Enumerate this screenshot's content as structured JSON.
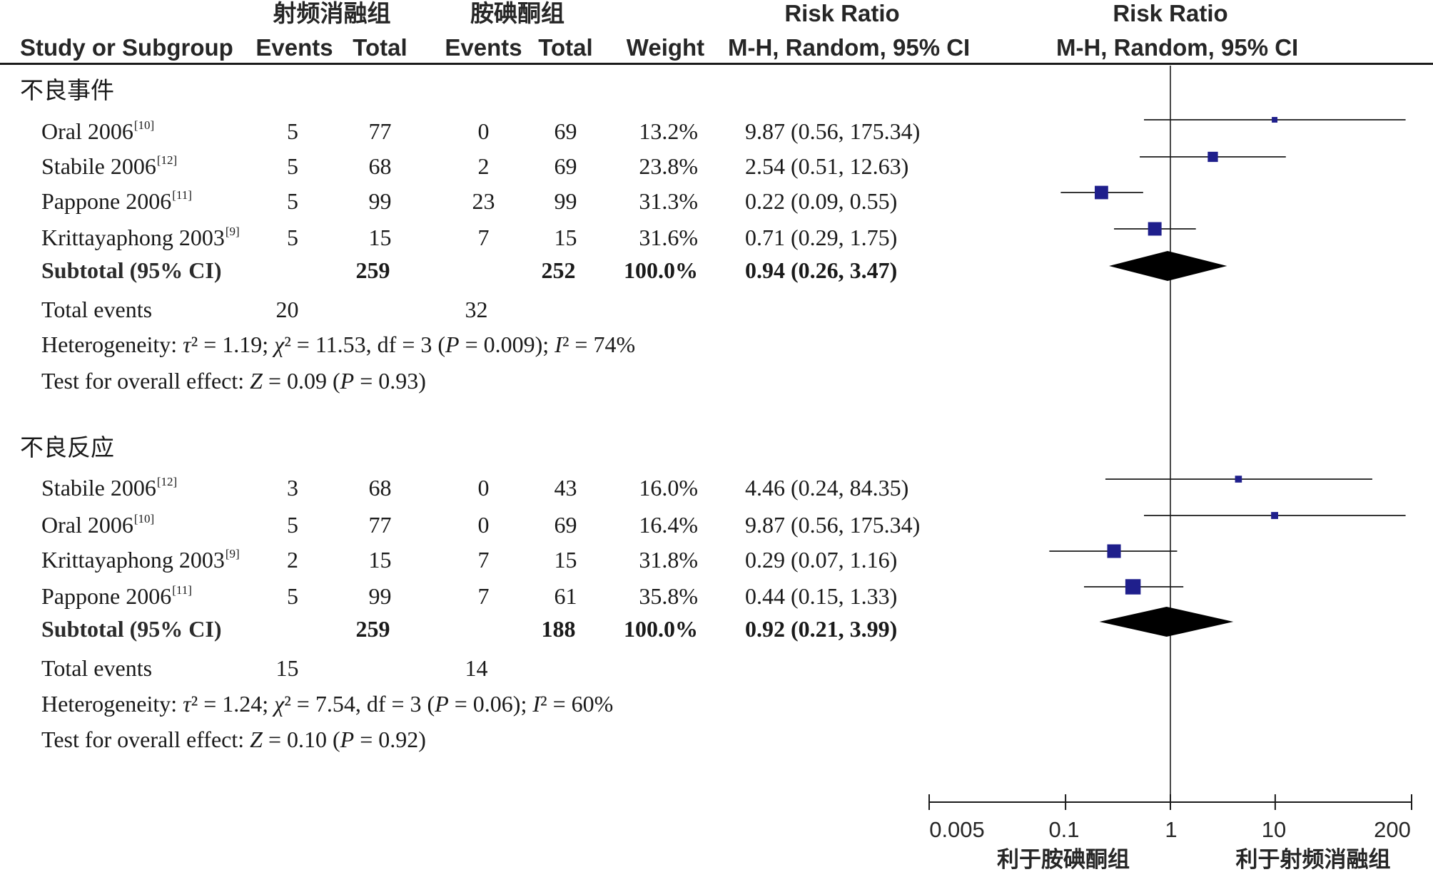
{
  "header": {
    "group1": "射频消融组",
    "group2": "胺碘酮组",
    "risk_ratio": "Risk Ratio",
    "risk_ratio_plot": "Risk Ratio",
    "study": "Study or Subgroup",
    "events1": "Events",
    "total1": "Total",
    "events2": "Events",
    "total2": "Total",
    "weight": "Weight",
    "method": "M-H, Random, 95% CI",
    "method_plot": "M-H, Random, 95% CI"
  },
  "subgroups": [
    {
      "title": "不良事件",
      "studies": [
        {
          "study": "Oral 2006",
          "ref": "[10]",
          "e1": "5",
          "t1": "77",
          "e2": "0",
          "t2": "69",
          "weight": "13.2%",
          "ci": "9.87 (0.56, 175.34)"
        },
        {
          "study": "Stabile 2006",
          "ref": "[12]",
          "e1": "5",
          "t1": "68",
          "e2": "2",
          "t2": "69",
          "weight": "23.8%",
          "ci": "2.54 (0.51, 12.63)"
        },
        {
          "study": "Pappone 2006",
          "ref": "[11]",
          "e1": "5",
          "t1": "99",
          "e2": "23",
          "t2": "99",
          "weight": "31.3%",
          "ci": "0.22 (0.09, 0.55)"
        },
        {
          "study": "Krittayaphong 2003",
          "ref": "[9]",
          "e1": "5",
          "t1": "15",
          "e2": "7",
          "t2": "15",
          "weight": "31.6%",
          "ci": "0.71 (0.29, 1.75)"
        }
      ],
      "subtotal": {
        "label": "Subtotal (95% CI)",
        "t1": "259",
        "t2": "252",
        "weight": "100.0%",
        "ci": "0.94 (0.26, 3.47)"
      },
      "total_events": {
        "label": "Total events",
        "e1": "20",
        "e2": "32"
      },
      "heterogeneity": {
        "label": "Heterogeneity:",
        "tau2": "1.19",
        "chi2": "11.53",
        "df": "3",
        "p": "0.009",
        "i2": "74%"
      },
      "overall": {
        "label": "Test for overall effect:",
        "z": "0.09",
        "p": "0.93"
      }
    },
    {
      "title": "不良反应",
      "studies": [
        {
          "study": "Stabile 2006",
          "ref": "[12]",
          "e1": "3",
          "t1": "68",
          "e2": "0",
          "t2": "43",
          "weight": "16.0%",
          "ci": "4.46 (0.24, 84.35)"
        },
        {
          "study": "Oral 2006",
          "ref": "[10]",
          "e1": "5",
          "t1": "77",
          "e2": "0",
          "t2": "69",
          "weight": "16.4%",
          "ci": "9.87 (0.56, 175.34)"
        },
        {
          "study": "Krittayaphong 2003",
          "ref": "[9]",
          "e1": "2",
          "t1": "15",
          "e2": "7",
          "t2": "15",
          "weight": "31.8%",
          "ci": "0.29 (0.07, 1.16)"
        },
        {
          "study": "Pappone 2006",
          "ref": "[11]",
          "e1": "5",
          "t1": "99",
          "e2": "7",
          "t2": "61",
          "weight": "35.8%",
          "ci": "0.44 (0.15, 1.33)"
        }
      ],
      "subtotal": {
        "label": "Subtotal (95% CI)",
        "t1": "259",
        "t2": "188",
        "weight": "100.0%",
        "ci": "0.92 (0.21, 3.99)"
      },
      "total_events": {
        "label": "Total events",
        "e1": "15",
        "e2": "14"
      },
      "heterogeneity": {
        "label": "Heterogeneity:",
        "tau2": "1.24",
        "chi2": "7.54",
        "df": "3",
        "p": "0.06",
        "i2": "60%"
      },
      "overall": {
        "label": "Test for overall effect:",
        "z": "0.10",
        "p": "0.92"
      }
    }
  ],
  "axis": {
    "ticks": [
      "0.005",
      "0.1",
      "1",
      "10",
      "200"
    ],
    "favours_left": "利于胺碘酮组",
    "favours_right": "利于射频消融组"
  },
  "colors": {
    "marker": "#1f1f8c",
    "diamond": "#000000",
    "line": "#1a1a1a"
  },
  "chart_data": {
    "type": "forest",
    "scale": "log",
    "xlim": [
      0.005,
      200
    ],
    "null_line": 1,
    "subgroups": [
      {
        "name": "不良事件",
        "points": [
          {
            "study": "Oral 2006",
            "rr": 9.87,
            "lo": 0.56,
            "hi": 175.34,
            "weight": 13.2
          },
          {
            "study": "Stabile 2006",
            "rr": 2.54,
            "lo": 0.51,
            "hi": 12.63,
            "weight": 23.8
          },
          {
            "study": "Pappone 2006",
            "rr": 0.22,
            "lo": 0.09,
            "hi": 0.55,
            "weight": 31.3
          },
          {
            "study": "Krittayaphong 2003",
            "rr": 0.71,
            "lo": 0.29,
            "hi": 1.75,
            "weight": 31.6
          }
        ],
        "pooled": {
          "rr": 0.94,
          "lo": 0.26,
          "hi": 3.47
        }
      },
      {
        "name": "不良反应",
        "points": [
          {
            "study": "Stabile 2006",
            "rr": 4.46,
            "lo": 0.24,
            "hi": 84.35,
            "weight": 16.0
          },
          {
            "study": "Oral 2006",
            "rr": 9.87,
            "lo": 0.56,
            "hi": 175.34,
            "weight": 16.4
          },
          {
            "study": "Krittayaphong 2003",
            "rr": 0.29,
            "lo": 0.07,
            "hi": 1.16,
            "weight": 31.8
          },
          {
            "study": "Pappone 2006",
            "rr": 0.44,
            "lo": 0.15,
            "hi": 1.33,
            "weight": 35.8
          }
        ],
        "pooled": {
          "rr": 0.92,
          "lo": 0.21,
          "hi": 3.99
        }
      }
    ]
  }
}
